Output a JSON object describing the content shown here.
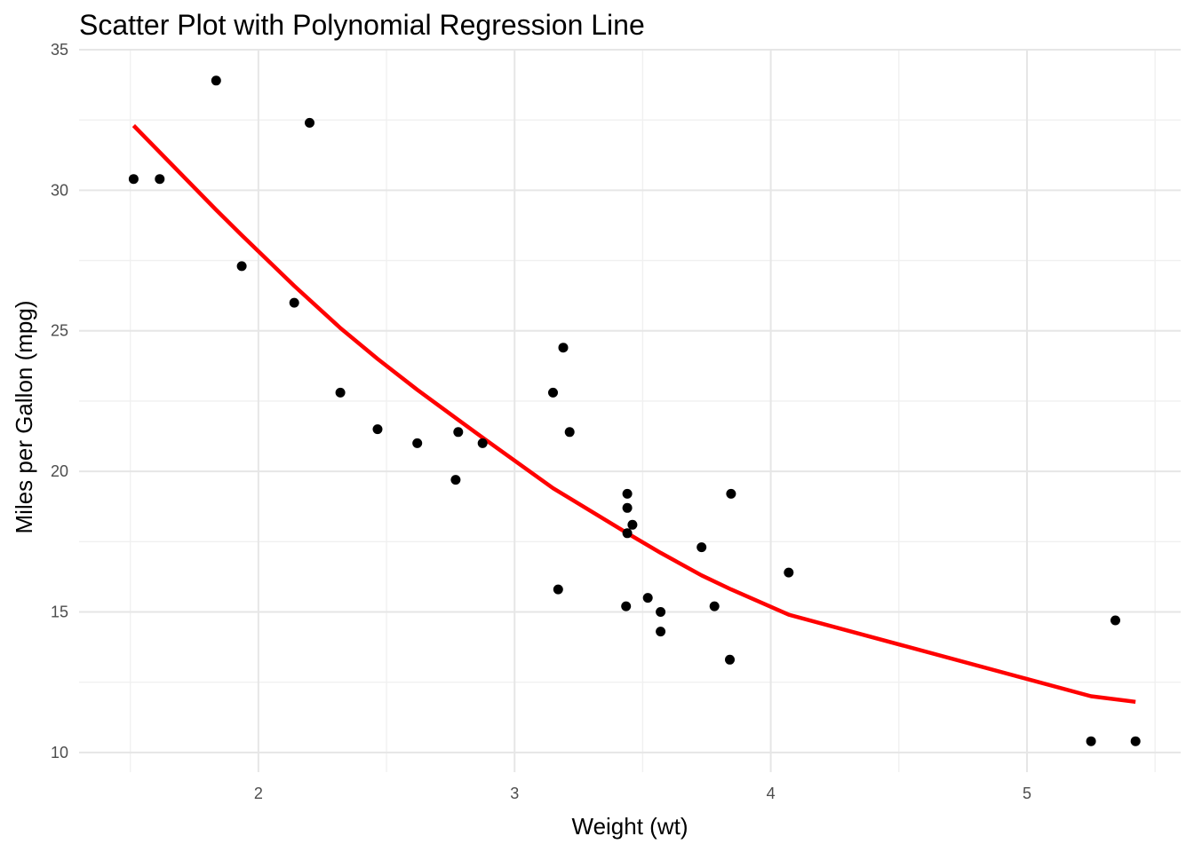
{
  "chart_data": {
    "type": "scatter",
    "title": "Scatter Plot with Polynomial Regression Line",
    "xlabel": "Weight (wt)",
    "ylabel": "Miles per Gallon (mpg)",
    "xlim": [
      1.3,
      5.6
    ],
    "ylim": [
      9.3,
      35
    ],
    "x_ticks": [
      2,
      3,
      4,
      5
    ],
    "y_ticks": [
      10,
      15,
      20,
      25,
      30,
      35
    ],
    "x_tick_labels": [
      "2",
      "3",
      "4",
      "5"
    ],
    "y_tick_labels": [
      "10",
      "15",
      "20",
      "25",
      "30",
      "35"
    ],
    "x_minor_ticks": [
      1.5,
      2.5,
      3.5,
      4.5,
      5.5
    ],
    "y_minor_ticks": [
      12.5,
      17.5,
      22.5,
      27.5,
      32.5
    ],
    "grid": true,
    "legend": "none",
    "series": [
      {
        "type": "scatter",
        "color": "#000000",
        "points": [
          [
            2.62,
            21.0
          ],
          [
            2.875,
            21.0
          ],
          [
            2.32,
            22.8
          ],
          [
            3.215,
            21.4
          ],
          [
            3.44,
            18.7
          ],
          [
            3.46,
            18.1
          ],
          [
            3.57,
            14.3
          ],
          [
            3.19,
            24.4
          ],
          [
            3.15,
            22.8
          ],
          [
            3.44,
            19.2
          ],
          [
            3.44,
            17.8
          ],
          [
            4.07,
            16.4
          ],
          [
            3.73,
            17.3
          ],
          [
            3.78,
            15.2
          ],
          [
            5.25,
            10.4
          ],
          [
            5.424,
            10.4
          ],
          [
            5.345,
            14.7
          ],
          [
            2.2,
            32.4
          ],
          [
            1.615,
            30.4
          ],
          [
            1.835,
            33.9
          ],
          [
            2.465,
            21.5
          ],
          [
            3.52,
            15.5
          ],
          [
            3.435,
            15.2
          ],
          [
            3.84,
            13.3
          ],
          [
            3.845,
            19.2
          ],
          [
            1.935,
            27.3
          ],
          [
            2.14,
            26.0
          ],
          [
            1.513,
            30.4
          ],
          [
            3.17,
            15.8
          ],
          [
            2.77,
            19.7
          ],
          [
            3.57,
            15.0
          ],
          [
            2.78,
            21.4
          ]
        ]
      },
      {
        "type": "line",
        "color": "#ff0000",
        "points": [
          [
            1.513,
            32.3
          ],
          [
            1.835,
            29.3
          ],
          [
            1.935,
            28.4
          ],
          [
            2.14,
            26.6
          ],
          [
            2.32,
            25.1
          ],
          [
            2.465,
            24.0
          ],
          [
            2.62,
            22.9
          ],
          [
            2.77,
            21.9
          ],
          [
            2.875,
            21.2
          ],
          [
            3.15,
            19.4
          ],
          [
            3.44,
            17.8
          ],
          [
            3.57,
            17.1
          ],
          [
            3.73,
            16.3
          ],
          [
            3.845,
            15.8
          ],
          [
            4.07,
            14.9
          ],
          [
            5.25,
            12.0
          ],
          [
            5.424,
            11.8
          ]
        ]
      }
    ]
  }
}
